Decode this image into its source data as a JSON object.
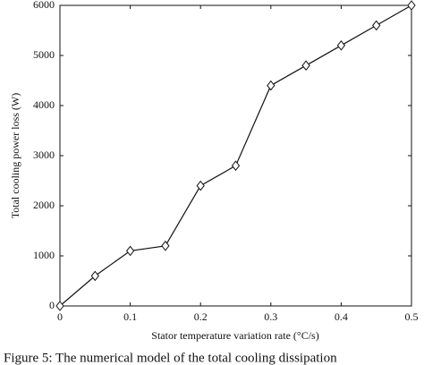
{
  "chart_data": {
    "type": "line",
    "x_label": "Stator temperature variation rate (°C/s)",
    "y_label": "Total cooling power loss (W)",
    "caption": "Figure 5: The numerical model of the total cooling dissipation",
    "x": [
      0,
      0.05,
      0.1,
      0.15,
      0.2,
      0.25,
      0.3,
      0.35,
      0.4,
      0.45,
      0.5
    ],
    "values": [
      0,
      600,
      1100,
      1200,
      2400,
      2800,
      4400,
      4800,
      5200,
      5600,
      6000
    ],
    "color": "#111111",
    "xlim": [
      0,
      0.5
    ],
    "xticks": [
      0,
      0.1,
      0.2,
      0.3,
      0.4,
      0.5
    ],
    "ylim": [
      0,
      6000
    ],
    "yticks": [
      0,
      1000,
      2000,
      3000,
      4000,
      5000,
      6000
    ],
    "marker": "diamond"
  }
}
